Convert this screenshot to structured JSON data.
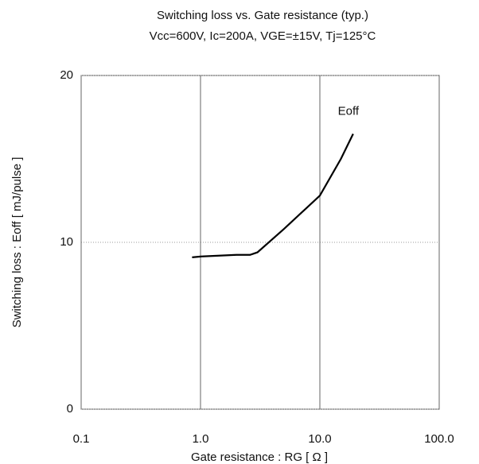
{
  "chart_data": {
    "type": "line",
    "title": "Switching loss vs. Gate resistance (typ.)",
    "subtitle": "Vcc=600V, Ic=200A, VGE=±15V, Tj=125°C",
    "x_label": "Gate resistance : RG [ Ω ]",
    "y_label": "Switching loss : Eoff [ mJ/pulse ]",
    "x_scale": "log",
    "xlim": [
      0.1,
      100
    ],
    "xticks": [
      {
        "value": 0.1,
        "label": "0.1"
      },
      {
        "value": 1,
        "label": "1.0"
      },
      {
        "value": 10,
        "label": "10.0"
      },
      {
        "value": 100,
        "label": "100.0"
      }
    ],
    "ylim": [
      0,
      20
    ],
    "yticks": [
      0,
      10,
      20
    ],
    "grid": true,
    "series": [
      {
        "name": "Eoff",
        "color": "#000000",
        "x": [
          0.85,
          1.0,
          2.0,
          2.6,
          3.0,
          5.0,
          10.0,
          15.0,
          19.0
        ],
        "values": [
          9.1,
          9.15,
          9.25,
          9.25,
          9.4,
          10.8,
          12.8,
          15.0,
          16.5
        ]
      }
    ]
  }
}
